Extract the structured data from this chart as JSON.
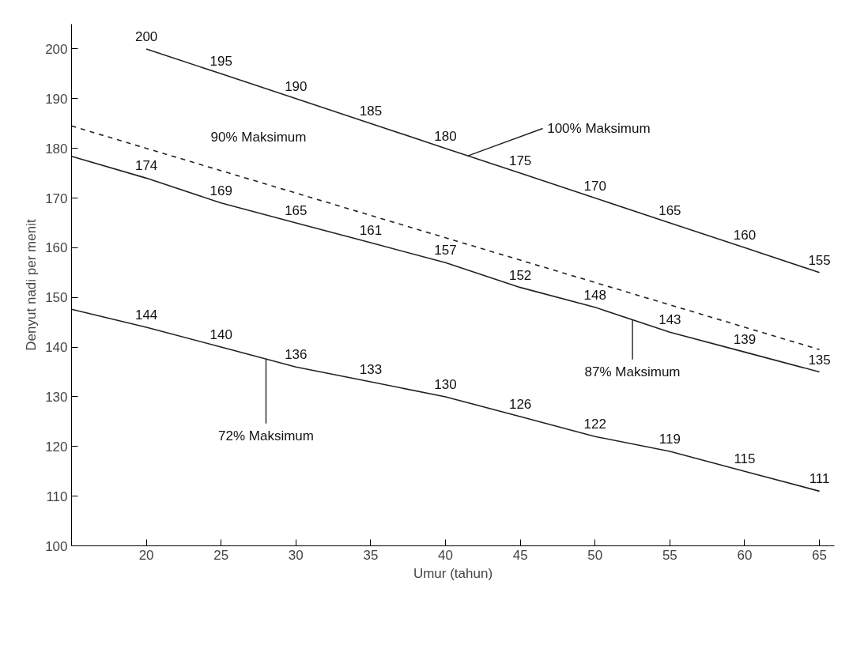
{
  "chart_data": {
    "type": "line",
    "xlabel": "Umur (tahun)",
    "ylabel": "Denyut nadi per menit",
    "x": [
      15,
      20,
      25,
      30,
      35,
      40,
      45,
      50,
      55,
      60,
      65
    ],
    "xlim": [
      15,
      66
    ],
    "ylim": [
      100,
      205
    ],
    "xticks": [
      20,
      25,
      30,
      35,
      40,
      45,
      50,
      55,
      60,
      65
    ],
    "yticks": [
      100,
      110,
      120,
      130,
      140,
      150,
      160,
      170,
      180,
      190,
      200
    ],
    "grid": false,
    "marker": "none",
    "series": [
      {
        "color": "#222222",
        "line_style": "solid",
        "values": [
          null,
          200,
          195,
          190,
          185,
          180,
          175,
          170,
          165,
          160,
          155
        ],
        "value_labels": [
          null,
          "200",
          "195",
          "190",
          "185",
          "180",
          "175",
          "170",
          "165",
          "160",
          "155"
        ]
      },
      {
        "color": "#222222",
        "line_style": "dashed",
        "values": [
          184.5,
          180,
          175.5,
          171,
          166.5,
          162,
          157.5,
          153,
          148.5,
          144,
          139.5
        ]
      },
      {
        "color": "#222222",
        "line_style": "solid",
        "values": [
          178.4,
          174,
          169,
          165,
          161,
          157,
          152,
          148,
          143,
          139,
          135
        ],
        "value_labels": [
          null,
          "174",
          "169",
          "165",
          "161",
          "157",
          "152",
          "148",
          "143",
          "139",
          "135"
        ]
      },
      {
        "color": "#222222",
        "line_style": "solid",
        "values": [
          147.6,
          144,
          140,
          136,
          133,
          130,
          126,
          122,
          119,
          115,
          111
        ],
        "value_labels": [
          null,
          "144",
          "140",
          "136",
          "133",
          "130",
          "126",
          "122",
          "119",
          "115",
          "111"
        ]
      }
    ],
    "annotations": [
      {
        "text": "100% Maksimum",
        "x": 41.5,
        "y": 178.5
      },
      {
        "text": "90% Maksimum",
        "x": 27.5,
        "y": 173.3
      },
      {
        "text": "87% Maksimum",
        "x": 52.5,
        "y": 145.5
      },
      {
        "text": "72% Maksimum",
        "x": 28,
        "y": 137.6
      }
    ]
  }
}
